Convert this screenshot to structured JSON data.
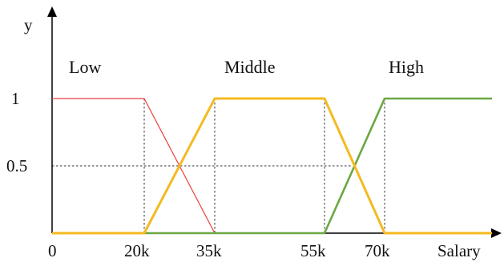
{
  "chart_data": {
    "type": "line",
    "xlabel": "Salary",
    "ylabel": "y",
    "x_ticks": [
      {
        "value": 0,
        "label": "0"
      },
      {
        "value": 20000,
        "label": "20k"
      },
      {
        "value": 35000,
        "label": "35k"
      },
      {
        "value": 55000,
        "label": "55k"
      },
      {
        "value": 70000,
        "label": "70k"
      }
    ],
    "y_ticks": [
      {
        "value": 0.5,
        "label": "0.5"
      },
      {
        "value": 1,
        "label": "1"
      }
    ],
    "xlim": [
      0,
      90000
    ],
    "ylim": [
      0,
      1
    ],
    "series": [
      {
        "name": "Low",
        "color": "#e8413c",
        "x": [
          0,
          20000,
          35000,
          55000
        ],
        "y": [
          1,
          1,
          0,
          0
        ]
      },
      {
        "name": "Middle",
        "color": "#f5b921",
        "x": [
          0,
          20000,
          35000,
          55000,
          70000,
          90000
        ],
        "y": [
          0,
          0,
          1,
          1,
          0,
          0
        ]
      },
      {
        "name": "High",
        "color": "#6aa842",
        "x": [
          20000,
          55000,
          70000,
          90000
        ],
        "y": [
          0,
          0,
          1,
          1
        ]
      }
    ],
    "guide_lines": {
      "vertical_at": [
        20000,
        35000,
        55000,
        70000
      ],
      "horizontal_at": [
        0.5
      ]
    },
    "grid": false,
    "legend": "none"
  }
}
